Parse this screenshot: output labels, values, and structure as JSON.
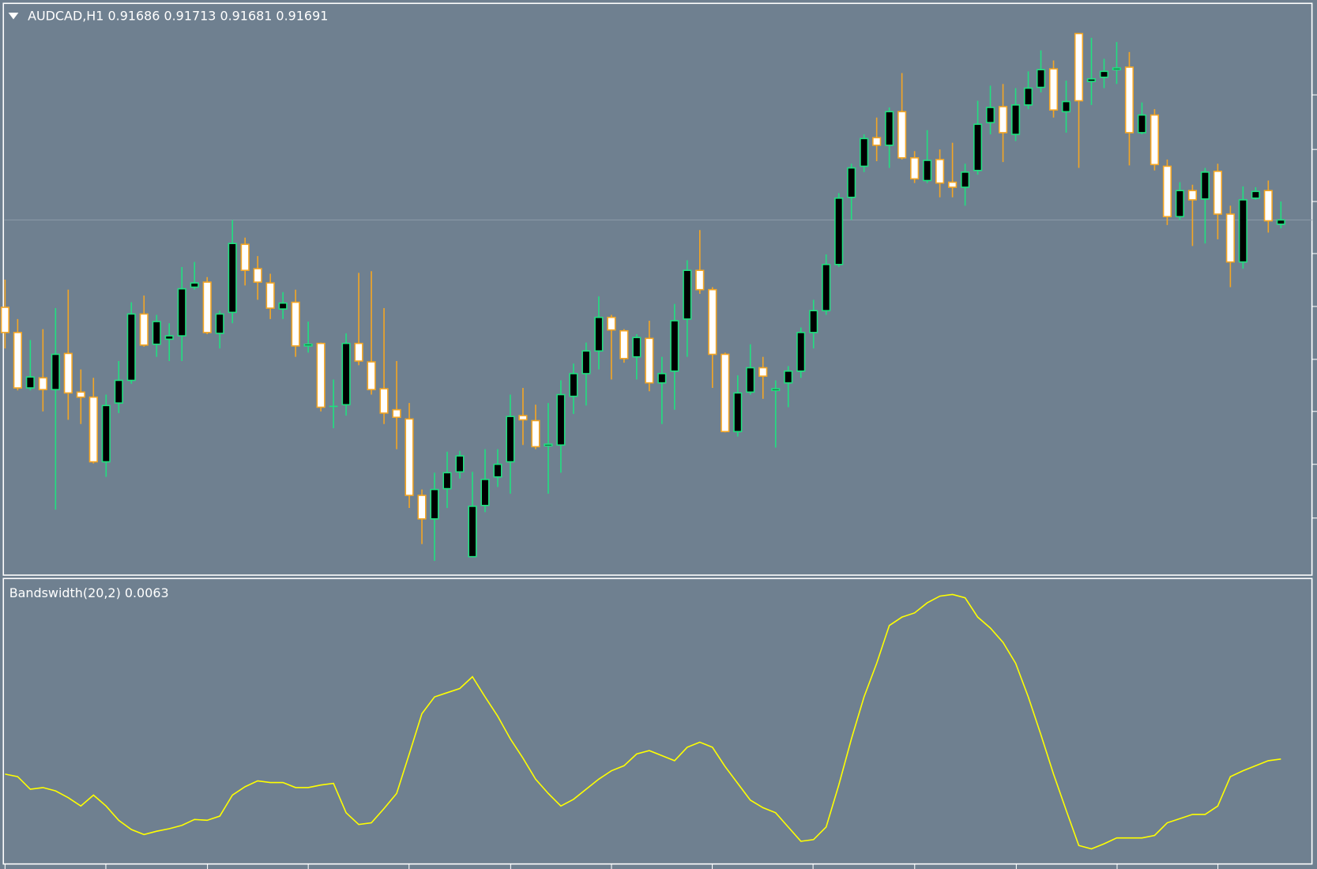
{
  "chart_data": [
    {
      "type": "candlestick",
      "title": "AUDCAD,H1  0.91686 0.91713 0.91681 0.91691",
      "open": [
        0.91587,
        0.91557,
        0.91491,
        0.91503,
        0.91489,
        0.91532,
        0.91486,
        0.9148,
        0.91403,
        0.91473,
        0.915,
        0.91579,
        0.91543,
        0.91549,
        0.91553,
        0.91611,
        0.91617,
        0.91556,
        0.91581,
        0.91662,
        0.91633,
        0.91616,
        0.91585,
        0.91593,
        0.91541,
        0.91544,
        0.91469,
        0.91471,
        0.91544,
        0.91522,
        0.9149,
        0.91465,
        0.91454,
        0.91363,
        0.91335,
        0.91371,
        0.91391,
        0.9129,
        0.91351,
        0.91385,
        0.91403,
        0.91458,
        0.91452,
        0.91422,
        0.91423,
        0.91481,
        0.91508,
        0.91535,
        0.91575,
        0.91559,
        0.91528,
        0.9155,
        0.91497,
        0.91511,
        0.91573,
        0.91631,
        0.91608,
        0.91531,
        0.91439,
        0.91486,
        0.91515,
        0.91488,
        0.91497,
        0.91511,
        0.91557,
        0.91583,
        0.91638,
        0.91718,
        0.91755,
        0.91789,
        0.9178,
        0.9182,
        0.91765,
        0.91738,
        0.91763,
        0.91736,
        0.9173,
        0.9175,
        0.91807,
        0.91826,
        0.91793,
        0.91828,
        0.91849,
        0.91871,
        0.9182,
        0.91913,
        0.91856,
        0.91861,
        0.9187,
        0.91873,
        0.91795,
        0.91816,
        0.91755,
        0.91695,
        0.91726,
        0.91716,
        0.91749,
        0.91698,
        0.91641,
        0.91717,
        0.91726,
        0.91686
      ],
      "high": [
        0.9162,
        0.91573,
        0.91548,
        0.91561,
        0.91586,
        0.91608,
        0.91513,
        0.91503,
        0.91483,
        0.91523,
        0.91593,
        0.91601,
        0.91578,
        0.91568,
        0.91635,
        0.91641,
        0.91623,
        0.91583,
        0.91691,
        0.9167,
        0.91648,
        0.91627,
        0.91605,
        0.91608,
        0.9157,
        0.91545,
        0.91501,
        0.91556,
        0.91628,
        0.9163,
        0.91586,
        0.91523,
        0.91473,
        0.9137,
        0.9139,
        0.91415,
        0.91416,
        0.91391,
        0.91418,
        0.91418,
        0.91483,
        0.91491,
        0.91471,
        0.91473,
        0.915,
        0.9152,
        0.91545,
        0.916,
        0.91578,
        0.91561,
        0.91555,
        0.91571,
        0.91528,
        0.91591,
        0.91643,
        0.91679,
        0.91611,
        0.91533,
        0.91506,
        0.91543,
        0.91528,
        0.915,
        0.91517,
        0.91563,
        0.91596,
        0.9165,
        0.91723,
        0.91758,
        0.91793,
        0.91813,
        0.91825,
        0.91866,
        0.91773,
        0.91798,
        0.91775,
        0.91783,
        0.91758,
        0.91833,
        0.91851,
        0.91853,
        0.91848,
        0.91868,
        0.91893,
        0.91881,
        0.91857,
        0.91913,
        0.91908,
        0.91883,
        0.91903,
        0.91891,
        0.91831,
        0.91823,
        0.91763,
        0.91736,
        0.91733,
        0.91753,
        0.91758,
        0.91708,
        0.91731,
        0.9173,
        0.91738,
        0.91713
      ],
      "low": [
        0.91538,
        0.91488,
        0.91488,
        0.91463,
        0.91346,
        0.91453,
        0.91448,
        0.91401,
        0.91385,
        0.91461,
        0.91496,
        0.9154,
        0.91528,
        0.91523,
        0.91523,
        0.91608,
        0.91555,
        0.91538,
        0.91568,
        0.91613,
        0.91596,
        0.91573,
        0.91573,
        0.91528,
        0.91533,
        0.91463,
        0.91443,
        0.91458,
        0.91518,
        0.91483,
        0.91448,
        0.91418,
        0.91348,
        0.91305,
        0.91285,
        0.91348,
        0.91383,
        0.9129,
        0.91343,
        0.91373,
        0.91365,
        0.91423,
        0.91418,
        0.91365,
        0.9139,
        0.9146,
        0.9147,
        0.91513,
        0.91501,
        0.91521,
        0.91501,
        0.91487,
        0.91448,
        0.91465,
        0.91528,
        0.91603,
        0.91491,
        0.91438,
        0.91433,
        0.91483,
        0.91478,
        0.9142,
        0.91468,
        0.91503,
        0.91538,
        0.91578,
        0.91635,
        0.91691,
        0.91748,
        0.91761,
        0.91753,
        0.91763,
        0.91735,
        0.91735,
        0.91718,
        0.91718,
        0.91708,
        0.91745,
        0.91793,
        0.9176,
        0.91785,
        0.91823,
        0.91843,
        0.91813,
        0.91795,
        0.91753,
        0.91828,
        0.91848,
        0.91853,
        0.91756,
        0.91793,
        0.9175,
        0.91685,
        0.91691,
        0.9166,
        0.91663,
        0.91668,
        0.91611,
        0.91633,
        0.91715,
        0.91676,
        0.91681
      ],
      "close": [
        0.91557,
        0.91491,
        0.91504,
        0.91489,
        0.91531,
        0.91485,
        0.9148,
        0.91403,
        0.9147,
        0.915,
        0.91579,
        0.91542,
        0.9157,
        0.91553,
        0.91609,
        0.91616,
        0.91557,
        0.91579,
        0.91663,
        0.91631,
        0.91617,
        0.91586,
        0.91592,
        0.91541,
        0.91543,
        0.91468,
        0.9147,
        0.91544,
        0.91523,
        0.91489,
        0.91461,
        0.91456,
        0.91363,
        0.91335,
        0.9137,
        0.9139,
        0.9141,
        0.9135,
        0.91382,
        0.914,
        0.91457,
        0.91453,
        0.91421,
        0.91424,
        0.91483,
        0.91508,
        0.91535,
        0.91575,
        0.9156,
        0.91526,
        0.91551,
        0.91497,
        0.91508,
        0.91571,
        0.91631,
        0.91608,
        0.91531,
        0.91439,
        0.91485,
        0.91515,
        0.91505,
        0.9149,
        0.91511,
        0.91557,
        0.91583,
        0.91638,
        0.91717,
        0.91753,
        0.91788,
        0.9178,
        0.9182,
        0.91765,
        0.9174,
        0.91762,
        0.91735,
        0.9173,
        0.91748,
        0.91805,
        0.91825,
        0.91795,
        0.91828,
        0.91848,
        0.9187,
        0.91822,
        0.91832,
        0.91833,
        0.91859,
        0.91868,
        0.91872,
        0.91795,
        0.91816,
        0.91757,
        0.91695,
        0.91726,
        0.91715,
        0.91748,
        0.91698,
        0.91641,
        0.91715,
        0.91725,
        0.9169,
        0.91691
      ],
      "ylim": [
        0.91268,
        0.91948
      ],
      "up_color": "#20e080",
      "up_body": "#000000",
      "down_color": "#f5a623",
      "down_body": "#ffffff"
    },
    {
      "type": "line",
      "title": "Bandswidth(20,2) 0.0063",
      "values": [
        0.0054,
        0.00525,
        0.0045,
        0.0046,
        0.0044,
        0.004,
        0.0035,
        0.00415,
        0.0035,
        0.00265,
        0.0021,
        0.0018,
        0.002,
        0.00215,
        0.00235,
        0.0027,
        0.00265,
        0.0029,
        0.00415,
        0.00465,
        0.005,
        0.0049,
        0.0049,
        0.0046,
        0.0046,
        0.00475,
        0.00485,
        0.0031,
        0.0024,
        0.0025,
        0.00335,
        0.00425,
        0.0066,
        0.009,
        0.01,
        0.01025,
        0.0105,
        0.0112,
        0.01,
        0.00885,
        0.0075,
        0.00635,
        0.0051,
        0.00425,
        0.0035,
        0.0039,
        0.0045,
        0.0051,
        0.0056,
        0.0059,
        0.0066,
        0.0068,
        0.0065,
        0.0062,
        0.007,
        0.0073,
        0.007,
        0.00585,
        0.00485,
        0.00385,
        0.0034,
        0.0031,
        0.00225,
        0.0014,
        0.0015,
        0.00225,
        0.00475,
        0.0075,
        0.01,
        0.012,
        0.01425,
        0.01475,
        0.015,
        0.0156,
        0.016,
        0.0161,
        0.0159,
        0.01475,
        0.0141,
        0.01325,
        0.012,
        0.01,
        0.00775,
        0.0054,
        0.00325,
        0.00115,
        0.00095,
        0.00125,
        0.0016,
        0.0016,
        0.0016,
        0.00175,
        0.0025,
        0.00275,
        0.003,
        0.003,
        0.0035,
        0.00525,
        0.0056,
        0.0059,
        0.0062,
        0.0063
      ],
      "ylim": [
        0.0001,
        0.017
      ],
      "color": "#ffff00"
    }
  ]
}
